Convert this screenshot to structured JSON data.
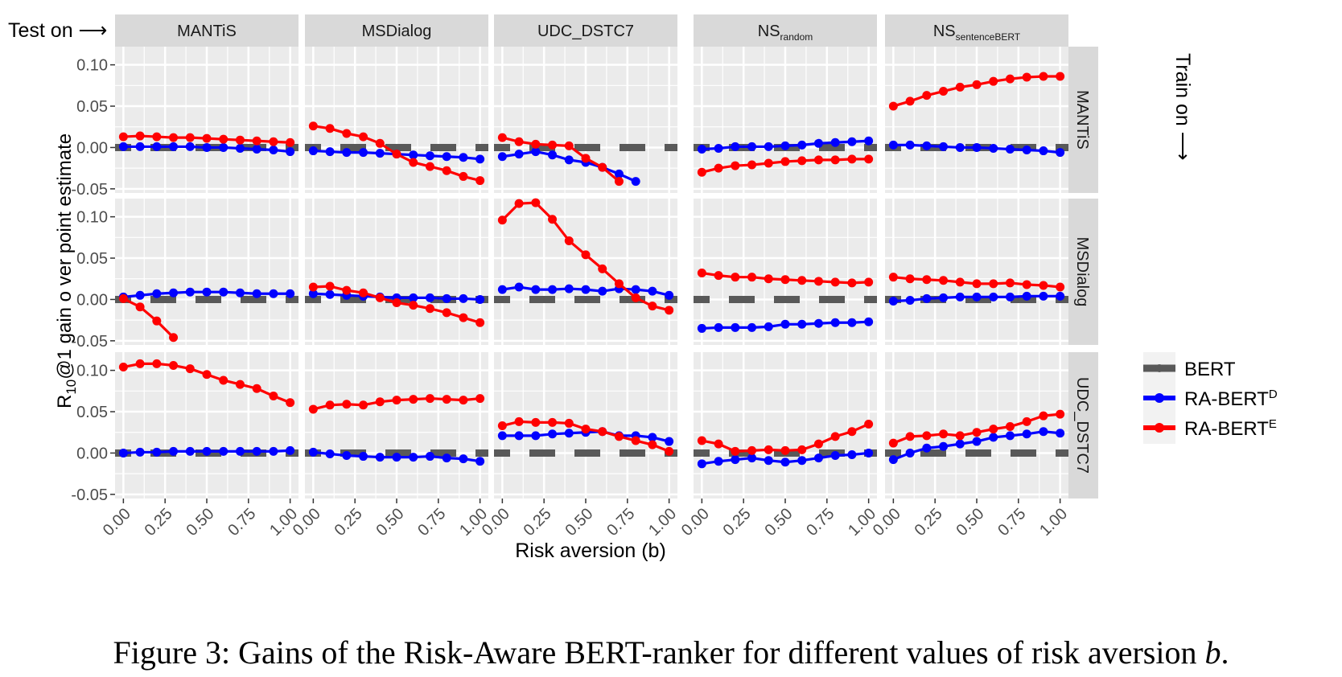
{
  "caption": {
    "text": "Figure 3: Gains of the Risk-Aware BERT-ranker for different values of risk aversion ",
    "var": "b",
    "end": "."
  },
  "labels": {
    "test_on": "Test on ⟶",
    "train_on": "Train on ⟶",
    "ylabel_pre": "R",
    "ylabel_sub": "10",
    "ylabel_post": "@1 gain o ver point estimate",
    "xlabel": "Risk aversion (b)"
  },
  "colors": {
    "BERT": "#595959",
    "RA-BERT_D": "#0000ff",
    "RA-BERT_E": "#ff0000",
    "panel_bg": "#ebebeb",
    "strip_bg": "#d9d9d9"
  },
  "legend": [
    {
      "key": "BERT",
      "label": "BERT",
      "sup": ""
    },
    {
      "key": "RA-BERT_D",
      "label": "RA-BERT",
      "sup": "D"
    },
    {
      "key": "RA-BERT_E",
      "label": "RA-BERT",
      "sup": "E"
    }
  ],
  "chart_data": {
    "type": "line",
    "facet_cols": [
      {
        "label": "MANTiS",
        "sub": ""
      },
      {
        "label": "MSDialog",
        "sub": ""
      },
      {
        "label": "UDC_DSTC7",
        "sub": ""
      },
      {
        "label": "NS",
        "sub": "random"
      },
      {
        "label": "NS",
        "sub": "sentenceBERT"
      }
    ],
    "facet_rows": [
      "MANTiS",
      "MSDialog",
      "UDC_DSTC7"
    ],
    "x": [
      0,
      0.1,
      0.2,
      0.3,
      0.4,
      0.5,
      0.6,
      0.7,
      0.8,
      0.9,
      1.0
    ],
    "xticks": [
      "0.00",
      "0.25",
      "0.50",
      "0.75",
      "1.00"
    ],
    "xtick_values": [
      0,
      0.25,
      0.5,
      0.75,
      1.0
    ],
    "xlim": [
      -0.05,
      1.05
    ],
    "ylim": [
      -0.055,
      0.122
    ],
    "yticks": [
      "0.10",
      "0.05",
      "0.00",
      "-0.05"
    ],
    "ytick_values": [
      0.1,
      0.05,
      0,
      -0.05
    ],
    "bert_baseline": 0,
    "panels": [
      [
        {
          "D": [
            0.001,
            0.001,
            0.001,
            0.001,
            0.001,
            0,
            0,
            -0.001,
            -0.002,
            -0.003,
            -0.005
          ],
          "E": [
            0.013,
            0.014,
            0.013,
            0.012,
            0.012,
            0.011,
            0.01,
            0.009,
            0.008,
            0.007,
            0.006
          ]
        },
        {
          "D": [
            -0.004,
            -0.005,
            -0.006,
            -0.006,
            -0.007,
            -0.008,
            -0.009,
            -0.01,
            -0.011,
            -0.012,
            -0.014
          ],
          "E": [
            0.026,
            0.023,
            0.017,
            0.013,
            0.005,
            -0.008,
            -0.018,
            -0.023,
            -0.028,
            -0.035,
            -0.04
          ]
        },
        {
          "D": [
            -0.011,
            -0.008,
            -0.005,
            -0.009,
            -0.015,
            -0.018,
            -0.024,
            -0.032,
            -0.041,
            null,
            null
          ],
          "E": [
            0.012,
            0.007,
            0.004,
            0.003,
            0.002,
            -0.013,
            -0.024,
            -0.041,
            null,
            null,
            null
          ]
        },
        {
          "D": [
            -0.002,
            -0.001,
            0.001,
            0.001,
            0.001,
            0.002,
            0.003,
            0.005,
            0.006,
            0.007,
            0.008
          ],
          "E": [
            -0.03,
            -0.025,
            -0.022,
            -0.021,
            -0.019,
            -0.017,
            -0.016,
            -0.015,
            -0.015,
            -0.014,
            -0.014
          ]
        },
        {
          "D": [
            0.003,
            0.003,
            0.002,
            0.001,
            0,
            0,
            -0.001,
            -0.002,
            -0.003,
            -0.004,
            -0.006
          ],
          "E": [
            0.05,
            0.056,
            0.063,
            0.068,
            0.073,
            0.076,
            0.08,
            0.083,
            0.085,
            0.086,
            0.086
          ]
        }
      ],
      [
        {
          "D": [
            0.003,
            0.005,
            0.007,
            0.008,
            0.009,
            0.009,
            0.009,
            0.008,
            0.007,
            0.007,
            0.007
          ],
          "E": [
            0.001,
            -0.009,
            -0.026,
            -0.046,
            null,
            null,
            null,
            null,
            null,
            null,
            null
          ]
        },
        {
          "D": [
            0.007,
            0.006,
            0.005,
            0.004,
            0.003,
            0.002,
            0.002,
            0.002,
            0.001,
            0.001,
            0
          ],
          "E": [
            0.015,
            0.016,
            0.011,
            0.008,
            0.002,
            -0.004,
            -0.007,
            -0.011,
            -0.016,
            -0.022,
            -0.028
          ]
        },
        {
          "D": [
            0.012,
            0.015,
            0.012,
            0.012,
            0.013,
            0.012,
            0.01,
            0.013,
            0.012,
            0.01,
            0.005
          ],
          "E": [
            0.096,
            0.116,
            0.117,
            0.097,
            0.071,
            0.054,
            0.037,
            0.019,
            0.002,
            -0.008,
            -0.013
          ]
        },
        {
          "D": [
            -0.035,
            -0.034,
            -0.034,
            -0.034,
            -0.033,
            -0.03,
            -0.03,
            -0.029,
            -0.028,
            -0.028,
            -0.027
          ],
          "E": [
            0.032,
            0.029,
            0.027,
            0.027,
            0.025,
            0.024,
            0.023,
            0.022,
            0.021,
            0.02,
            0.021
          ]
        },
        {
          "D": [
            -0.002,
            -0.001,
            0.001,
            0.002,
            0.003,
            0.003,
            0.003,
            0.003,
            0.004,
            0.004,
            0.004
          ],
          "E": [
            0.027,
            0.025,
            0.024,
            0.023,
            0.021,
            0.019,
            0.019,
            0.02,
            0.018,
            0.017,
            0.015
          ]
        }
      ],
      [
        {
          "D": [
            0,
            0.001,
            0.001,
            0.002,
            0.002,
            0.002,
            0.002,
            0.002,
            0.002,
            0.002,
            0.003
          ],
          "E": [
            0.104,
            0.108,
            0.108,
            0.106,
            0.102,
            0.095,
            0.088,
            0.083,
            0.078,
            0.069,
            0.061
          ]
        },
        {
          "D": [
            0.001,
            -0.001,
            -0.003,
            -0.004,
            -0.005,
            -0.005,
            -0.005,
            -0.004,
            -0.006,
            -0.007,
            -0.01
          ],
          "E": [
            0.053,
            0.058,
            0.059,
            0.058,
            0.062,
            0.064,
            0.065,
            0.066,
            0.065,
            0.064,
            0.066
          ]
        },
        {
          "D": [
            0.021,
            0.021,
            0.021,
            0.023,
            0.024,
            0.025,
            0.026,
            0.021,
            0.021,
            0.019,
            0.014
          ],
          "E": [
            0.033,
            0.038,
            0.037,
            0.037,
            0.036,
            0.029,
            0.026,
            0.02,
            0.015,
            0.01,
            0.002
          ]
        },
        {
          "D": [
            -0.013,
            -0.01,
            -0.008,
            -0.006,
            -0.009,
            -0.011,
            -0.009,
            -0.006,
            -0.003,
            -0.002,
            0
          ],
          "E": [
            0.015,
            0.011,
            0.002,
            0.003,
            0.004,
            0.003,
            0.004,
            0.011,
            0.02,
            0.026,
            0.035
          ]
        },
        {
          "D": [
            -0.008,
            0,
            0.006,
            0.008,
            0.011,
            0.014,
            0.019,
            0.021,
            0.023,
            0.026,
            0.024
          ],
          "E": [
            0.012,
            0.02,
            0.021,
            0.023,
            0.021,
            0.025,
            0.029,
            0.032,
            0.038,
            0.045,
            0.047
          ]
        }
      ]
    ]
  }
}
